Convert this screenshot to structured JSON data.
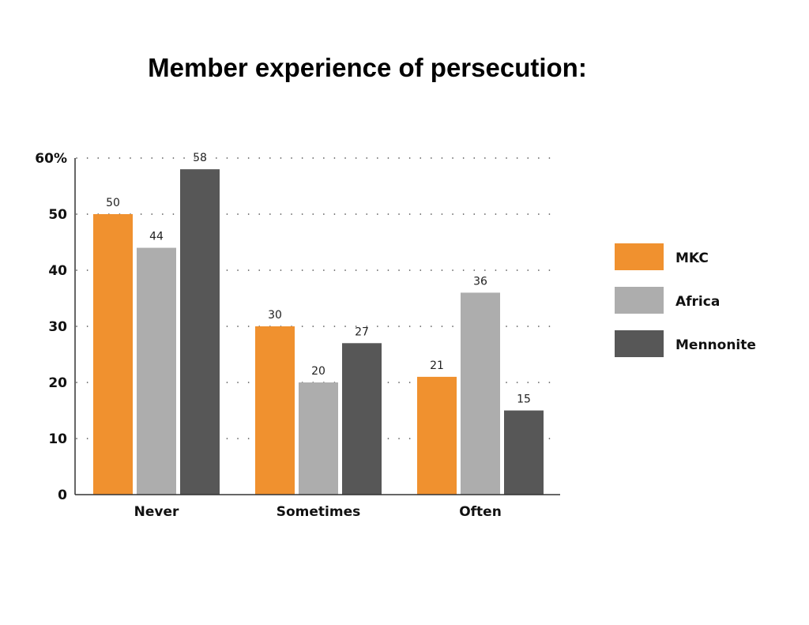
{
  "chart_data": {
    "type": "bar",
    "title": "Member experience of persecution:",
    "categories": [
      "Never",
      "Sometimes",
      "Often"
    ],
    "series": [
      {
        "name": "MKC",
        "color": "#f0912f",
        "values": [
          50,
          30,
          21
        ]
      },
      {
        "name": "Africa",
        "color": "#adadad",
        "values": [
          44,
          20,
          36
        ]
      },
      {
        "name": "Mennonite",
        "color": "#575757",
        "values": [
          58,
          27,
          15
        ]
      }
    ],
    "y_ticks": [
      "0",
      "10",
      "20",
      "30",
      "40",
      "50",
      "60%"
    ],
    "ylim": [
      0,
      60
    ],
    "grid": "dotted horizontal",
    "legend_position": "right",
    "xlabel": "",
    "ylabel": ""
  }
}
